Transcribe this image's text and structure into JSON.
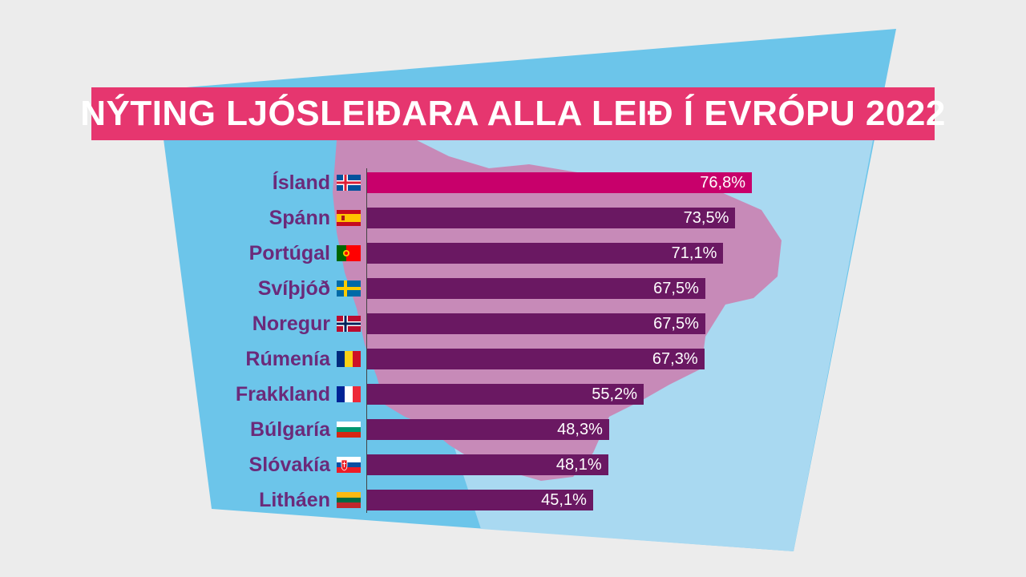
{
  "title": "NÝTING LJÓSLEIÐARA ALLA LEIÐ Í EVRÓPU 2022",
  "colors": {
    "bar": "#6a1862",
    "highlight": "#c8006b",
    "banner": "#e6366f",
    "label": "#6b2a7a",
    "background_panel": "#6cc5ea",
    "map": "#c78ab8"
  },
  "chart_data": {
    "type": "bar",
    "orientation": "horizontal",
    "title": "NÝTING LJÓSLEIÐARA ALLA LEIÐ Í EVRÓPU 2022",
    "categories": [
      "Ísland",
      "Spánn",
      "Portúgal",
      "Svíþjóð",
      "Noregur",
      "Rúmenía",
      "Frakkland",
      "Búlgaría",
      "Slóvakía",
      "Litháen"
    ],
    "values": [
      76.8,
      73.5,
      71.1,
      67.5,
      67.5,
      67.3,
      55.2,
      48.3,
      48.1,
      45.1
    ],
    "value_labels": [
      "76,8%",
      "73,5%",
      "71,1%",
      "67,5%",
      "67,5%",
      "67,3%",
      "55,2%",
      "48,3%",
      "48,1%",
      "45,1%"
    ],
    "flags": [
      "iceland-flag-icon",
      "spain-flag-icon",
      "portugal-flag-icon",
      "sweden-flag-icon",
      "norway-flag-icon",
      "romania-flag-icon",
      "france-flag-icon",
      "bulgaria-flag-icon",
      "slovakia-flag-icon",
      "lithuania-flag-icon"
    ],
    "highlight_index": 0,
    "unit": "%",
    "grid": false,
    "legend": "none"
  }
}
